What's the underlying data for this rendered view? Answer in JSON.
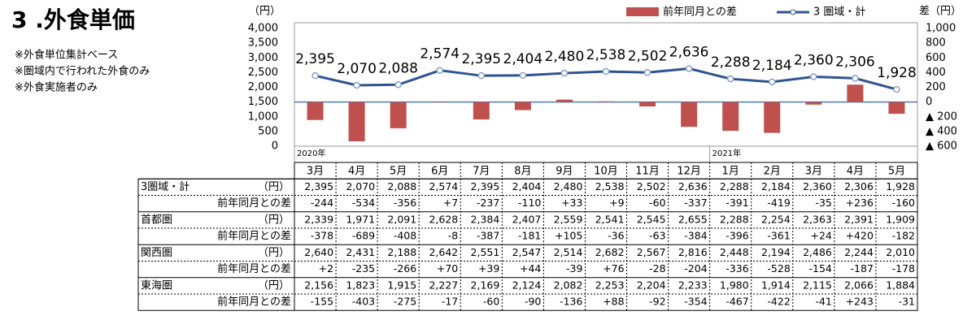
{
  "title": "3 .外食単価",
  "notes": [
    "※外食単位集計ベース",
    "※圏域内で行われた外食のみ",
    "※外食実施者のみ"
  ],
  "chart_data": {
    "type": "combo",
    "y_label": "（円）",
    "y2_label": "差（円）",
    "categories": [
      "3月",
      "4月",
      "5月",
      "6月",
      "7月",
      "8月",
      "9月",
      "10月",
      "11月",
      "12月",
      "1月",
      "2月",
      "3月",
      "4月",
      "5月"
    ],
    "year_labels": [
      "2020年",
      null,
      null,
      null,
      null,
      null,
      null,
      null,
      null,
      null,
      "2021年",
      null,
      null,
      null,
      null
    ],
    "ylim": [
      0,
      4000
    ],
    "yticks": [
      0,
      {
        "value": 500,
        "label": "500"
      },
      {
        "value": 1000,
        "label": "1,000"
      },
      {
        "value": 1500,
        "label": "1,500"
      },
      {
        "value": 2000,
        "label": "2,000"
      },
      {
        "value": 2500,
        "label": "2,500"
      },
      {
        "value": 3000,
        "label": "3,000"
      },
      {
        "value": 3500,
        "label": "3,500"
      },
      {
        "value": 4000,
        "label": "4,000"
      }
    ],
    "y2lim": [
      -600,
      1000
    ],
    "y2ticks": [
      {
        "value": -600,
        "label": "▲ 600"
      },
      {
        "value": -400,
        "label": "▲ 400"
      },
      {
        "value": -200,
        "label": "▲ 200"
      },
      0,
      200,
      400,
      600,
      800,
      {
        "value": 1000,
        "label": "1,000"
      }
    ],
    "grid": false,
    "legend": "top-right",
    "series": [
      {
        "name": "前年同月との差",
        "kind": "bar",
        "axis": "y2",
        "color": "#c0504d",
        "values": [
          -244,
          -534,
          -356,
          7,
          -237,
          -110,
          33,
          9,
          -60,
          -337,
          -391,
          -419,
          -35,
          236,
          -160
        ]
      },
      {
        "name": "3 圏域・計",
        "kind": "line",
        "axis": "y",
        "color": "#2e5591",
        "values": [
          2395,
          2070,
          2088,
          2574,
          2395,
          2404,
          2480,
          2538,
          2502,
          2636,
          2288,
          2184,
          2360,
          2306,
          1928
        ],
        "value_labels": [
          "2,395",
          "2,070",
          "2,088",
          "2,574",
          "2,395",
          "2,404",
          "2,480",
          "2,538",
          "2,502",
          "2,636",
          "2,288",
          "2,184",
          "2,360",
          "2,306",
          "1,928"
        ]
      }
    ]
  },
  "table": {
    "groups": [
      {
        "name": "3圏域・計",
        "unit": "（円）",
        "diff_label": "前年同月との差",
        "values": [
          "2,395",
          "2,070",
          "2,088",
          "2,574",
          "2,395",
          "2,404",
          "2,480",
          "2,538",
          "2,502",
          "2,636",
          "2,288",
          "2,184",
          "2,360",
          "2,306",
          "1,928"
        ],
        "diffs": [
          "-244",
          "-534",
          "-356",
          "+7",
          "-237",
          "-110",
          "+33",
          "+9",
          "-60",
          "-337",
          "-391",
          "-419",
          "-35",
          "+236",
          "-160"
        ]
      },
      {
        "name": "首都圏",
        "unit": "（円）",
        "diff_label": "前年同月との差",
        "values": [
          "2,339",
          "1,971",
          "2,091",
          "2,628",
          "2,384",
          "2,407",
          "2,559",
          "2,541",
          "2,545",
          "2,655",
          "2,288",
          "2,254",
          "2,363",
          "2,391",
          "1,909"
        ],
        "diffs": [
          "-378",
          "-689",
          "-408",
          "-8",
          "-387",
          "-181",
          "+105",
          "-36",
          "-63",
          "-384",
          "-396",
          "-361",
          "+24",
          "+420",
          "-182"
        ]
      },
      {
        "name": "関西圏",
        "unit": "（円）",
        "diff_label": "前年同月との差",
        "values": [
          "2,640",
          "2,431",
          "2,188",
          "2,642",
          "2,551",
          "2,547",
          "2,514",
          "2,682",
          "2,567",
          "2,816",
          "2,448",
          "2,194",
          "2,486",
          "2,244",
          "2,010"
        ],
        "diffs": [
          "+2",
          "-235",
          "-266",
          "+70",
          "+39",
          "+44",
          "-39",
          "+76",
          "-28",
          "-204",
          "-336",
          "-528",
          "-154",
          "-187",
          "-178"
        ]
      },
      {
        "name": "東海圏",
        "unit": "（円）",
        "diff_label": "前年同月との差",
        "values": [
          "2,156",
          "1,823",
          "1,915",
          "2,227",
          "2,169",
          "2,124",
          "2,082",
          "2,253",
          "2,204",
          "2,233",
          "1,980",
          "1,914",
          "2,115",
          "2,066",
          "1,884"
        ],
        "diffs": [
          "-155",
          "-403",
          "-275",
          "-17",
          "-60",
          "-90",
          "-136",
          "+88",
          "-92",
          "-354",
          "-467",
          "-422",
          "-41",
          "+243",
          "-31"
        ]
      }
    ]
  }
}
